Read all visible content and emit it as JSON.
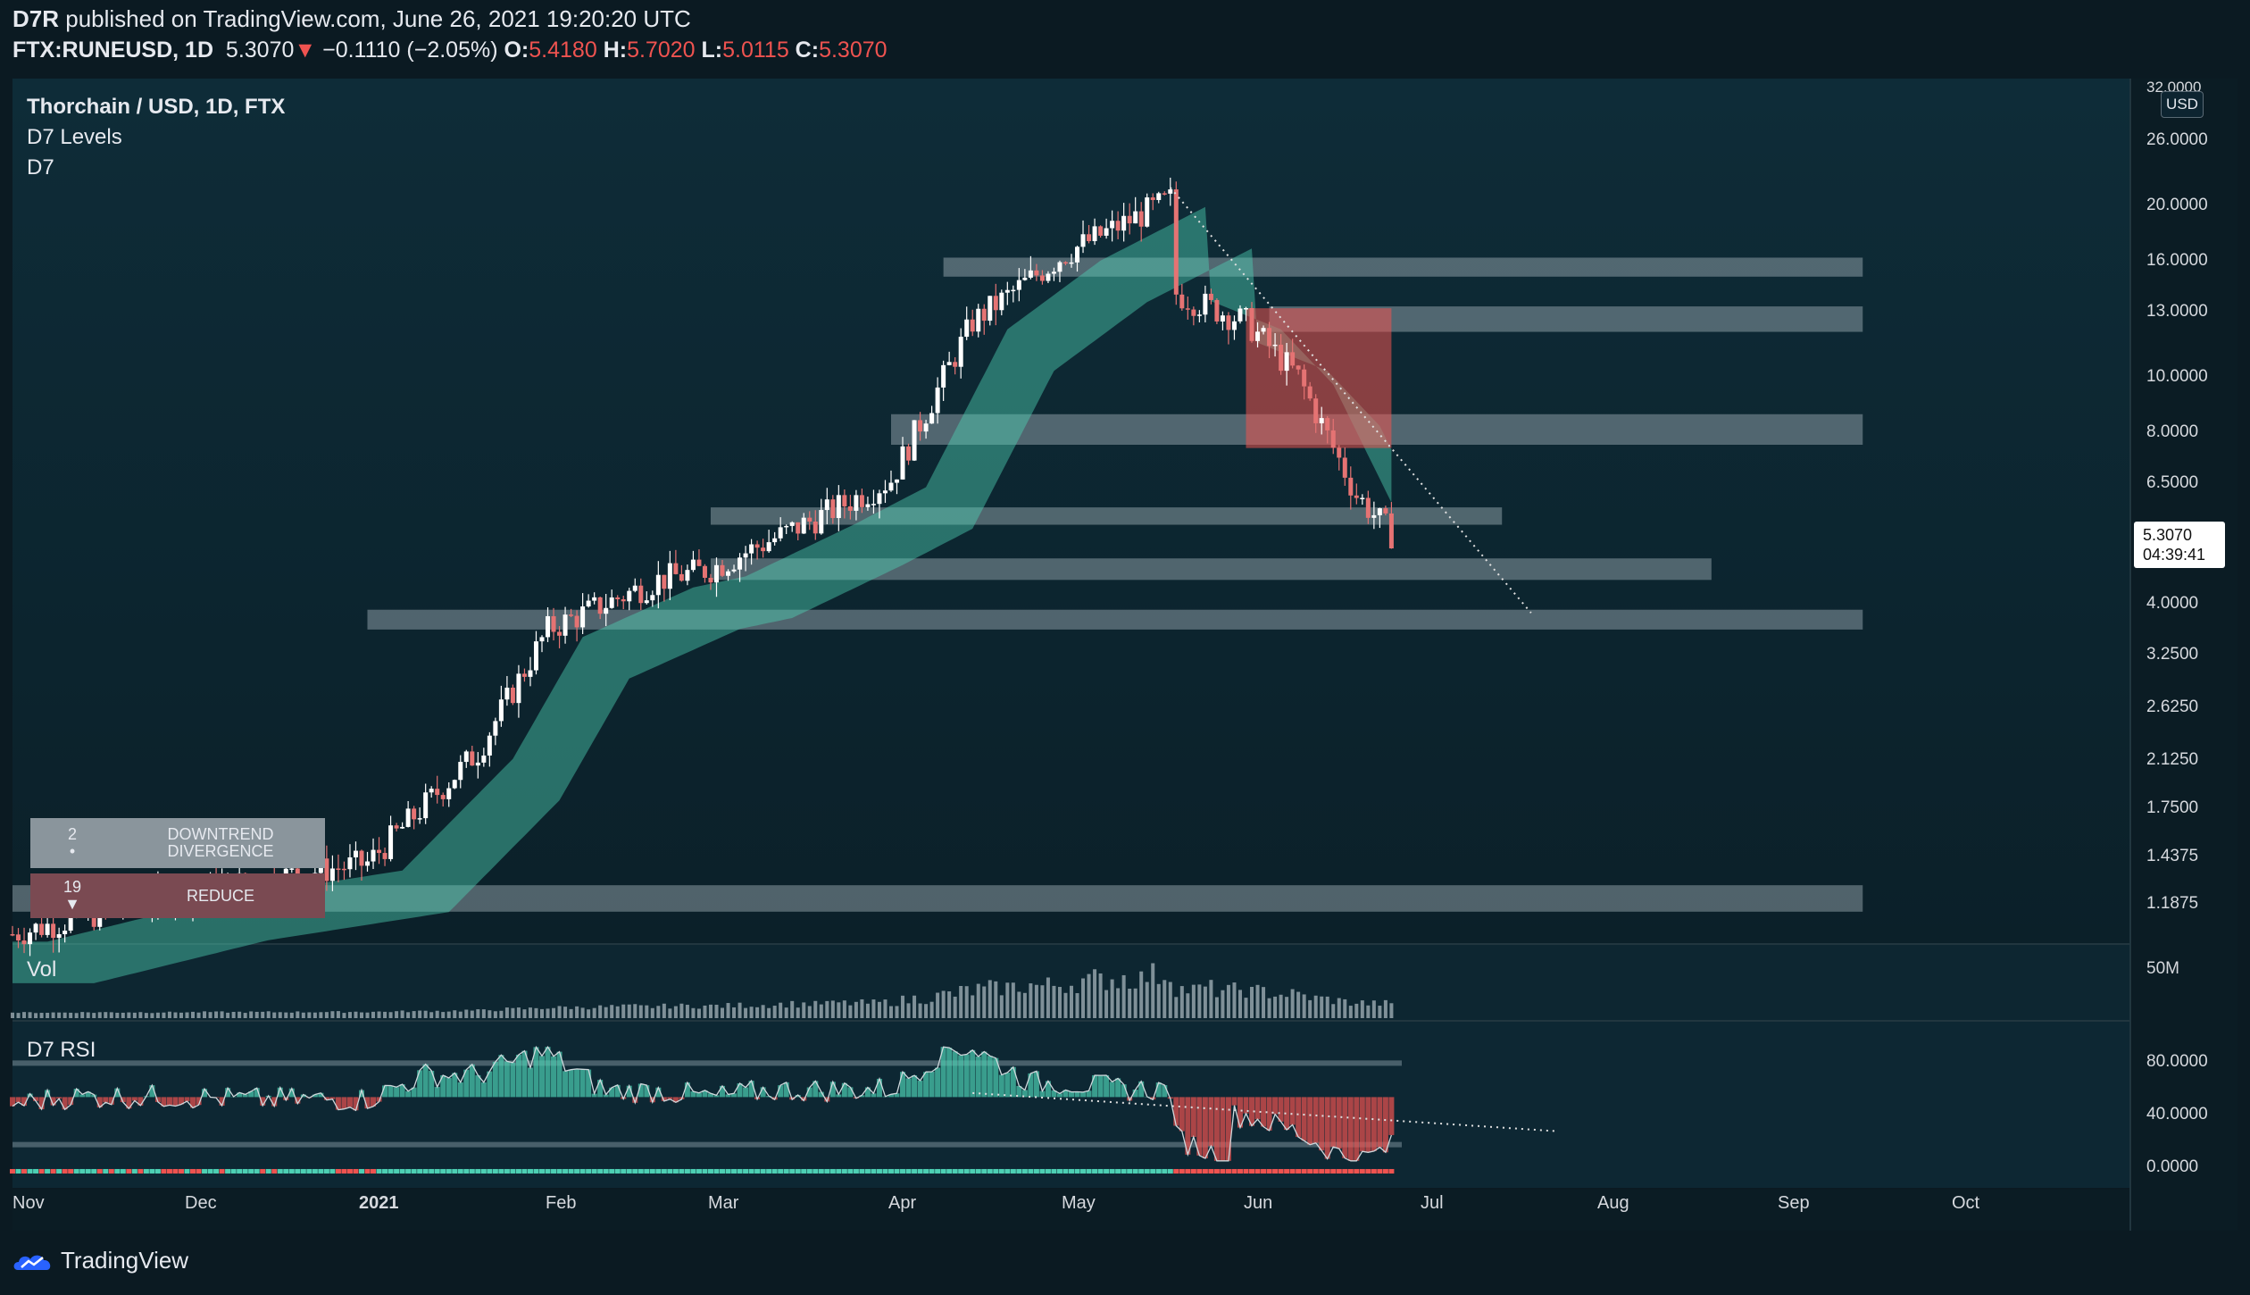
{
  "header": {
    "author": "D7R",
    "published_text": "published on TradingView.com, June 26, 2021 19:20:20 UTC",
    "symbol": "FTX:RUNEUSD, 1D",
    "last": "5.3070",
    "change": "−0.1110 (−2.05%)",
    "o_label": "O:",
    "o_value": "5.4180",
    "h_label": "H:",
    "h_value": "5.7020",
    "l_label": "L:",
    "l_value": "5.0115",
    "c_label": "C:",
    "c_value": "5.3070"
  },
  "legend": {
    "title": "Thorchain / USD, 1D, FTX",
    "ind1": "D7 Levels",
    "ind2": "D7",
    "vol": "Vol",
    "rsi": "D7 RSI"
  },
  "price_axis": {
    "currency": "USD",
    "top_label": "32.0000",
    "labels": [
      "26.0000",
      "20.0000",
      "16.0000",
      "13.0000",
      "10.0000",
      "8.0000",
      "6.5000",
      "4.0000",
      "3.2500",
      "2.6250",
      "2.1250",
      "1.7500",
      "1.4375",
      "1.1875"
    ],
    "current_price": "5.3070",
    "countdown": "04:39:41"
  },
  "volume_axis": {
    "label": "50M"
  },
  "rsi_axis": {
    "labels": [
      "80.0000",
      "40.0000",
      "0.0000"
    ]
  },
  "time_axis": [
    "Nov",
    "Dec",
    "2021",
    "Feb",
    "Mar",
    "Apr",
    "May",
    "Jun",
    "Jul",
    "Aug",
    "Sep",
    "Oct"
  ],
  "table": {
    "row1": {
      "count": "2",
      "marker": "•",
      "label": "DOWNTREND DIVERGENCE"
    },
    "row2": {
      "count": "19",
      "marker": "▼",
      "label": "REDUCE"
    }
  },
  "footer": {
    "brand": "TradingView"
  },
  "colors": {
    "background": "#0b1a22",
    "pane": "#0e2a36",
    "bull": "#4dd0b4",
    "bear": "#ef5350",
    "level_band": "#b0bec5",
    "candle_up": "#ffffff",
    "candle_down": "#e57373"
  },
  "chart_data": {
    "type": "candlestick",
    "title": "Thorchain / USD, 1D, FTX",
    "y_scale": "log",
    "ylim": [
      1.05,
      32
    ],
    "x_range": [
      "2020-11-01",
      "2021-10-31"
    ],
    "key_points": [
      {
        "date": "2020-11-01",
        "price": 1.05
      },
      {
        "date": "2020-12-01",
        "price": 1.25
      },
      {
        "date": "2021-01-01",
        "price": 1.4
      },
      {
        "date": "2021-01-20",
        "price": 2.2
      },
      {
        "date": "2021-02-01",
        "price": 3.6
      },
      {
        "date": "2021-02-20",
        "price": 4.4
      },
      {
        "date": "2021-03-01",
        "price": 4.6
      },
      {
        "date": "2021-03-20",
        "price": 5.7
      },
      {
        "date": "2021-04-01",
        "price": 6.6
      },
      {
        "date": "2021-04-15",
        "price": 12.5
      },
      {
        "date": "2021-05-01",
        "price": 16.5
      },
      {
        "date": "2021-05-19",
        "price": 20.5
      },
      {
        "date": "2021-05-20",
        "price": 14
      },
      {
        "date": "2021-06-01",
        "price": 12.5
      },
      {
        "date": "2021-06-10",
        "price": 10
      },
      {
        "date": "2021-06-20",
        "price": 6.2
      },
      {
        "date": "2021-06-26",
        "price": 5.307
      }
    ],
    "levels": [
      {
        "from": "2021-04-10",
        "to": "2021-09-15",
        "price_low": 15,
        "price_high": 16.2
      },
      {
        "from": "2021-06-05",
        "to": "2021-09-15",
        "price_low": 12,
        "price_high": 13.3
      },
      {
        "from": "2021-04-01",
        "to": "2021-09-15",
        "price_low": 7.6,
        "price_high": 8.6
      },
      {
        "from": "2021-03-01",
        "to": "2021-07-15",
        "price_low": 5.5,
        "price_high": 5.9
      },
      {
        "from": "2021-03-01",
        "to": "2021-08-20",
        "price_low": 4.4,
        "price_high": 4.8
      },
      {
        "from": "2021-01-01",
        "to": "2021-09-15",
        "price_low": 3.6,
        "price_high": 3.9
      },
      {
        "from": "2020-11-01",
        "to": "2021-09-15",
        "price_low": 1.15,
        "price_high": 1.28
      }
    ]
  }
}
